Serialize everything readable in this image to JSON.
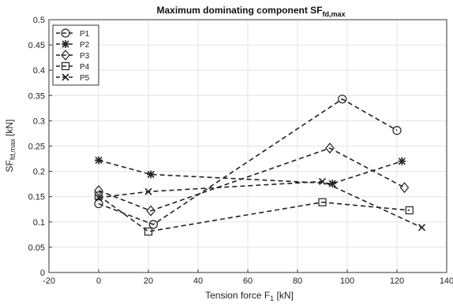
{
  "chart_data": {
    "type": "line",
    "title": "Maximum dominating component SF",
    "title_sub": "fd,max",
    "xlabel": "Tension force F",
    "xlabel_sub": "1",
    "xlabel_unit": " [kN]",
    "ylabel": "SF",
    "ylabel_sub": "fd,max",
    "ylabel_unit": " [kN]",
    "xlim": [
      -20,
      140
    ],
    "ylim": [
      0,
      0.5
    ],
    "xticks": [
      -20,
      0,
      20,
      40,
      60,
      80,
      100,
      120,
      140
    ],
    "yticks": [
      0,
      0.05,
      0.1,
      0.15,
      0.2,
      0.25,
      0.3,
      0.35,
      0.4,
      0.45,
      0.5
    ],
    "grid": true,
    "legend_position": "top-left",
    "line_style": "dashed",
    "series": [
      {
        "name": "P1",
        "marker": "circle",
        "x": [
          0,
          22,
          98,
          120
        ],
        "y": [
          0.136,
          0.095,
          0.343,
          0.281
        ]
      },
      {
        "name": "P2",
        "marker": "asterisk",
        "x": [
          0,
          21,
          94,
          122
        ],
        "y": [
          0.222,
          0.194,
          0.176,
          0.22
        ]
      },
      {
        "name": "P3",
        "marker": "diamond",
        "x": [
          0,
          21,
          93,
          123
        ],
        "y": [
          0.162,
          0.122,
          0.246,
          0.168
        ]
      },
      {
        "name": "P4",
        "marker": "square",
        "x": [
          0,
          20,
          90,
          125
        ],
        "y": [
          0.152,
          0.081,
          0.139,
          0.123
        ]
      },
      {
        "name": "P5",
        "marker": "x",
        "x": [
          0,
          20,
          90,
          130
        ],
        "y": [
          0.148,
          0.16,
          0.18,
          0.089
        ]
      }
    ]
  }
}
